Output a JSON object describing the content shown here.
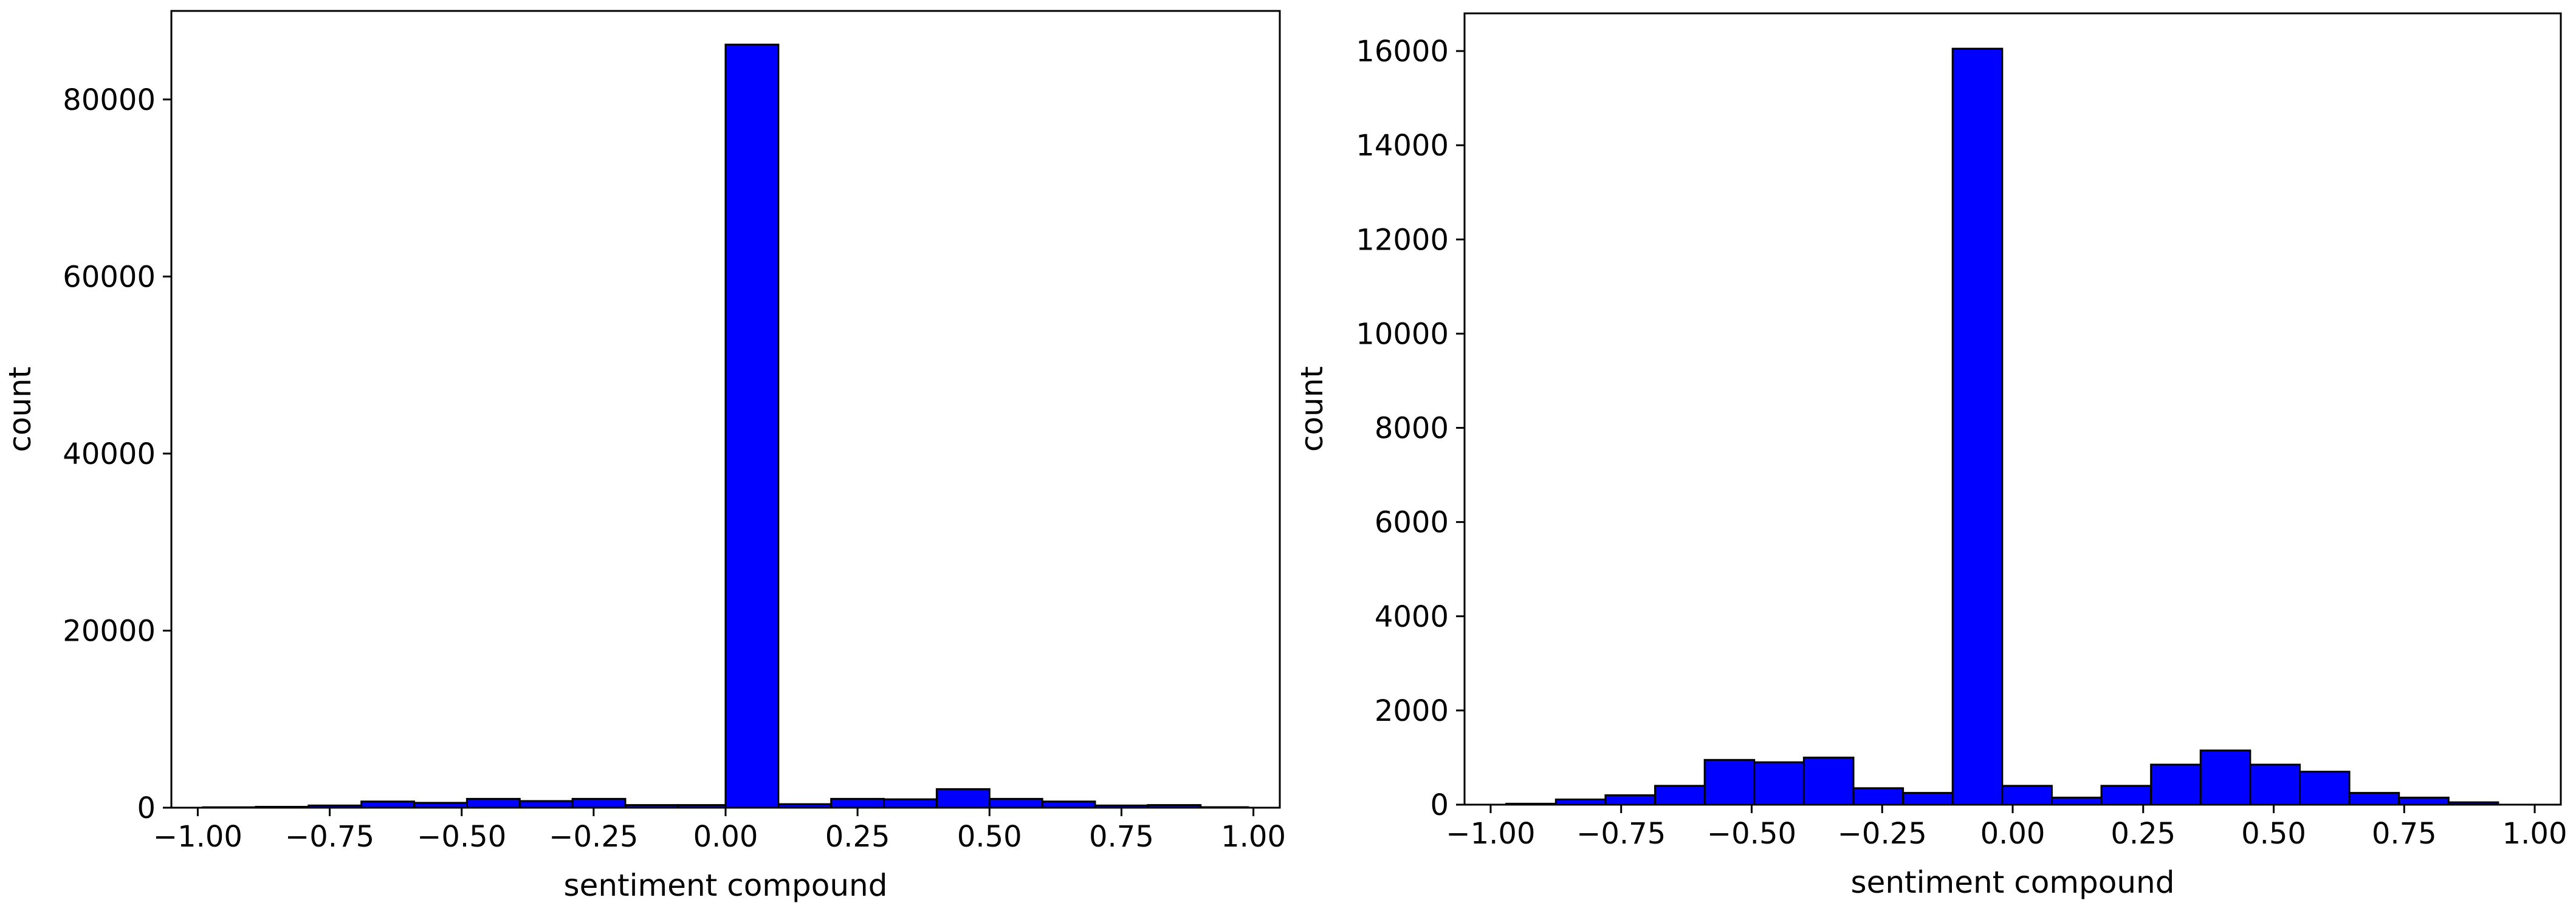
{
  "chart_data": [
    {
      "type": "histogram",
      "title": "",
      "xlabel": "sentiment compound",
      "ylabel": "count",
      "xlim": [
        -1.05,
        1.05
      ],
      "ylim": [
        0,
        90000
      ],
      "xticks": [
        -1.0,
        -0.75,
        -0.5,
        -0.25,
        0.0,
        0.25,
        0.5,
        0.75,
        1.0
      ],
      "xtick_labels": [
        "−1.00",
        "−0.75",
        "−0.50",
        "−0.25",
        "0.00",
        "0.25",
        "0.50",
        "0.75",
        "1.00"
      ],
      "yticks": [
        0,
        20000,
        40000,
        60000,
        80000
      ],
      "ytick_labels": [
        "0",
        "20000",
        "40000",
        "60000",
        "80000"
      ],
      "bin_edges": [
        -0.99,
        -0.89,
        -0.79,
        -0.69,
        -0.59,
        -0.49,
        -0.39,
        -0.29,
        -0.19,
        -0.09,
        0.0,
        0.1,
        0.2,
        0.3,
        0.4,
        0.5,
        0.6,
        0.7,
        0.8,
        0.9,
        0.99
      ],
      "values": [
        50,
        100,
        250,
        700,
        550,
        1000,
        750,
        1000,
        300,
        300,
        86200,
        400,
        1000,
        950,
        2100,
        1000,
        700,
        250,
        300,
        60
      ],
      "bar_color": "#0000ff",
      "edge_color": "#000000",
      "grid": false
    },
    {
      "type": "histogram",
      "title": "",
      "xlabel": "sentiment compound",
      "ylabel": "count",
      "xlim": [
        -1.05,
        1.05
      ],
      "ylim": [
        0,
        16800
      ],
      "xticks": [
        -1.0,
        -0.75,
        -0.5,
        -0.25,
        0.0,
        0.25,
        0.5,
        0.75,
        1.0
      ],
      "xtick_labels": [
        "−1.00",
        "−0.75",
        "−0.50",
        "−0.25",
        "0.00",
        "0.25",
        "0.50",
        "0.75",
        "1.00"
      ],
      "yticks": [
        0,
        2000,
        4000,
        6000,
        8000,
        10000,
        12000,
        14000,
        16000
      ],
      "ytick_labels": [
        "0",
        "2000",
        "4000",
        "6000",
        "8000",
        "10000",
        "12000",
        "14000",
        "16000"
      ],
      "bin_edges": [
        -0.97,
        -0.875,
        -0.78,
        -0.685,
        -0.59,
        -0.495,
        -0.4,
        -0.305,
        -0.21,
        -0.115,
        -0.02,
        0.075,
        0.17,
        0.265,
        0.36,
        0.455,
        0.55,
        0.645,
        0.74,
        0.835,
        0.93
      ],
      "values": [
        20,
        110,
        200,
        400,
        950,
        900,
        1000,
        350,
        250,
        16050,
        400,
        150,
        400,
        850,
        1150,
        850,
        700,
        250,
        150,
        50
      ],
      "bar_color": "#0000ff",
      "edge_color": "#000000",
      "grid": false
    }
  ]
}
